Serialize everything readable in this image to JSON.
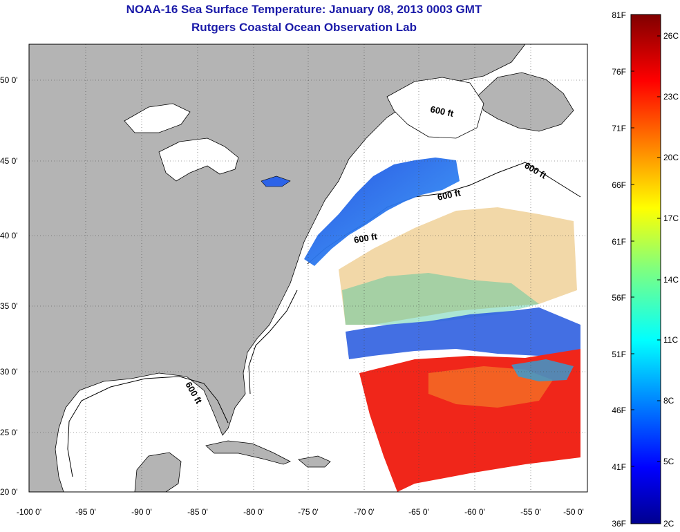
{
  "title": "NOAA-16 Sea Surface Temperature:  January 08, 2013 0003 GMT",
  "subtitle": "Rutgers Coastal Ocean Observation Lab",
  "lat_labels": [
    "50 0'",
    "45 0'",
    "40 0'",
    "35 0'",
    "30 0'",
    "25 0'",
    "20 0'"
  ],
  "lon_labels": [
    "-100 0'",
    "-95 0'",
    "-90 0'",
    "-85 0'",
    "-80 0'",
    "-75 0'",
    "-70 0'",
    "-65 0'",
    "-60 0'",
    "-55 0'",
    "-50 0'"
  ],
  "contour_label": "600 ft",
  "colorbar": {
    "fahrenheit_labels": [
      "81F",
      "76F",
      "71F",
      "66F",
      "61F",
      "56F",
      "51F",
      "46F",
      "41F",
      "36F"
    ],
    "celsius_labels": [
      "26C",
      "23C",
      "20C",
      "17C",
      "14C",
      "11C",
      "8C",
      "5C",
      "2C"
    ],
    "colormap": "jet"
  },
  "colors": {
    "title": "#1a1aa8",
    "land": "#b4b4b4",
    "ocean": "#ffffff"
  }
}
